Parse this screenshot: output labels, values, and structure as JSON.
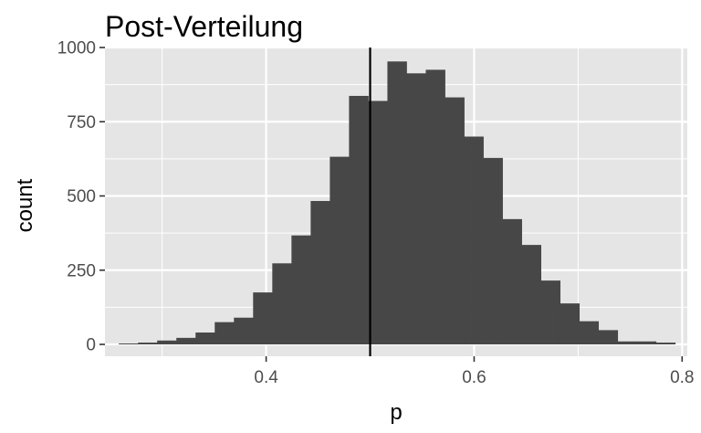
{
  "chart_data": {
    "type": "bar",
    "title": "Post-Verteilung",
    "xlabel": "p",
    "ylabel": "count",
    "xlim": [
      0.245,
      0.805
    ],
    "ylim": [
      -40,
      1000
    ],
    "xticks": [
      {
        "value": 0.4,
        "label": "0.4"
      },
      {
        "value": 0.6,
        "label": "0.6"
      },
      {
        "value": 0.8,
        "label": "0.8"
      }
    ],
    "xminor": [
      0.3,
      0.5,
      0.7
    ],
    "yticks": [
      {
        "value": 0,
        "label": "0"
      },
      {
        "value": 250,
        "label": "250"
      },
      {
        "value": 500,
        "label": "500"
      },
      {
        "value": 750,
        "label": "750"
      },
      {
        "value": 1000,
        "label": "1000"
      }
    ],
    "yminor": [
      125,
      375,
      625,
      875
    ],
    "bin_start": 0.2583,
    "bin_width": 0.01845,
    "counts": [
      3,
      6,
      13,
      22,
      40,
      75,
      90,
      175,
      273,
      367,
      483,
      632,
      837,
      820,
      953,
      913,
      925,
      832,
      700,
      628,
      422,
      335,
      215,
      138,
      78,
      48,
      10,
      10,
      6
    ],
    "vline_x": 0.5,
    "grid": true,
    "legend": "none",
    "colors": {
      "panel": "#e5e5e5",
      "grid": "#ffffff",
      "bar": "#474747",
      "vline": "#000000"
    }
  }
}
